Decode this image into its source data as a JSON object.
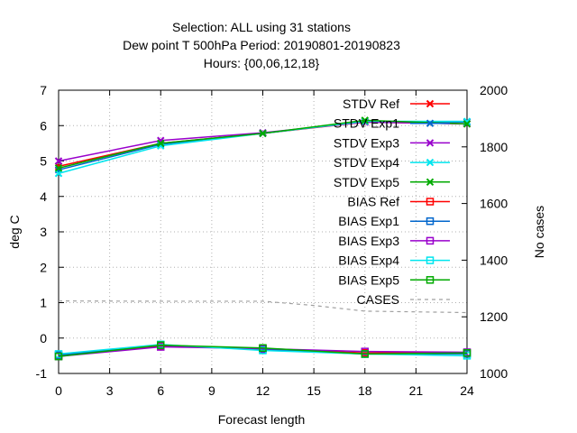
{
  "chart_data": {
    "type": "line",
    "title": [
      "Selection: ALL using    31 stations",
      "Dew point T 500hPa   Period: 20190801-20190823",
      "Hours: {00,06,12,18}"
    ],
    "xlabel": "Forecast length",
    "ylabel": "deg C",
    "y2label": "No cases",
    "xlim": [
      0,
      24
    ],
    "ylim": [
      -1,
      7
    ],
    "y2lim": [
      1000,
      2000
    ],
    "xticks": [
      0,
      3,
      6,
      9,
      12,
      15,
      18,
      21,
      24
    ],
    "yticks": [
      -1,
      0,
      1,
      2,
      3,
      4,
      5,
      6,
      7
    ],
    "y2ticks": [
      1000,
      1200,
      1400,
      1600,
      1800,
      2000
    ],
    "grid": true,
    "legend_position": "top-right",
    "x": [
      0,
      6,
      12,
      18,
      24
    ],
    "series": [
      {
        "name": "STDV Ref",
        "color": "#ff0000",
        "marker": "x",
        "axis": "y1",
        "values": [
          4.85,
          5.5,
          5.78,
          6.1,
          6.05
        ]
      },
      {
        "name": "STDV Exp1",
        "color": "#0066cc",
        "marker": "x",
        "axis": "y1",
        "values": [
          4.75,
          5.47,
          5.78,
          6.12,
          6.1
        ]
      },
      {
        "name": "STDV Exp3",
        "color": "#9900cc",
        "marker": "x",
        "axis": "y1",
        "values": [
          5.0,
          5.58,
          5.8,
          6.1,
          6.05
        ]
      },
      {
        "name": "STDV Exp4",
        "color": "#00e5ee",
        "marker": "x",
        "axis": "y1",
        "values": [
          4.65,
          5.43,
          5.78,
          6.12,
          6.12
        ]
      },
      {
        "name": "STDV Exp5",
        "color": "#00aa00",
        "marker": "x",
        "axis": "y1",
        "values": [
          4.8,
          5.5,
          5.78,
          6.15,
          6.05
        ]
      },
      {
        "name": "BIAS Ref",
        "color": "#ff0000",
        "marker": "square",
        "axis": "y1",
        "values": [
          -0.5,
          -0.22,
          -0.3,
          -0.42,
          -0.42
        ]
      },
      {
        "name": "BIAS Exp1",
        "color": "#0066cc",
        "marker": "square",
        "axis": "y1",
        "values": [
          -0.48,
          -0.2,
          -0.32,
          -0.45,
          -0.45
        ]
      },
      {
        "name": "BIAS Exp3",
        "color": "#9900cc",
        "marker": "square",
        "axis": "y1",
        "values": [
          -0.52,
          -0.25,
          -0.3,
          -0.38,
          -0.4
        ]
      },
      {
        "name": "BIAS Exp4",
        "color": "#00e5ee",
        "marker": "square",
        "axis": "y1",
        "values": [
          -0.45,
          -0.18,
          -0.35,
          -0.45,
          -0.5
        ]
      },
      {
        "name": "BIAS Exp5",
        "color": "#00aa00",
        "marker": "square",
        "axis": "y1",
        "values": [
          -0.52,
          -0.2,
          -0.28,
          -0.45,
          -0.42
        ]
      },
      {
        "name": "CASES",
        "color": "#a0a0a0",
        "marker": "none",
        "dashed": true,
        "axis": "y2",
        "x": [
          0,
          6,
          12,
          15,
          18,
          24
        ],
        "values": [
          1256,
          1255,
          1255,
          1240,
          1220,
          1215
        ]
      }
    ]
  }
}
